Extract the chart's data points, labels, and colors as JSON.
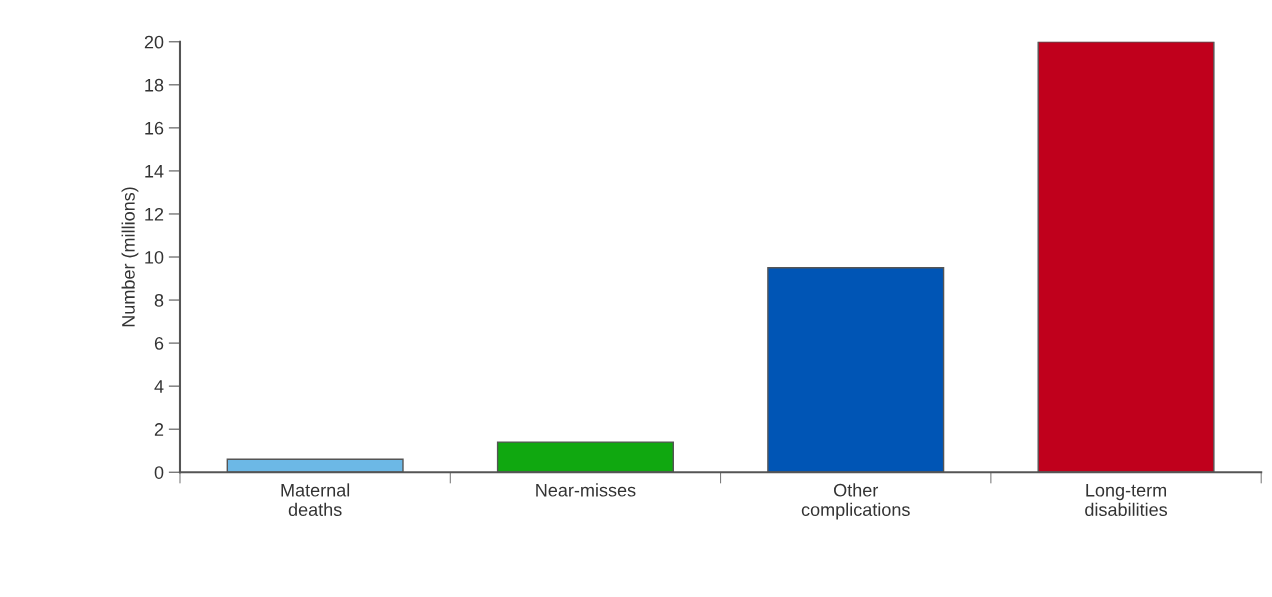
{
  "chart_data": {
    "type": "bar",
    "ylabel": "Number (millions)",
    "categories": [
      "Maternal\ndeaths",
      "Near-misses",
      "Other\ncomplications",
      "Long-term\ndisabilities"
    ],
    "values": [
      0.6,
      1.4,
      9.5,
      20
    ],
    "colors": [
      "#6cb8e6",
      "#10a810",
      "#0055b5",
      "#c0001c"
    ],
    "ylim": [
      0,
      20
    ],
    "yticks": [
      0,
      2,
      4,
      6,
      8,
      10,
      12,
      14,
      16,
      18,
      20
    ],
    "grid": false,
    "legend": false
  }
}
